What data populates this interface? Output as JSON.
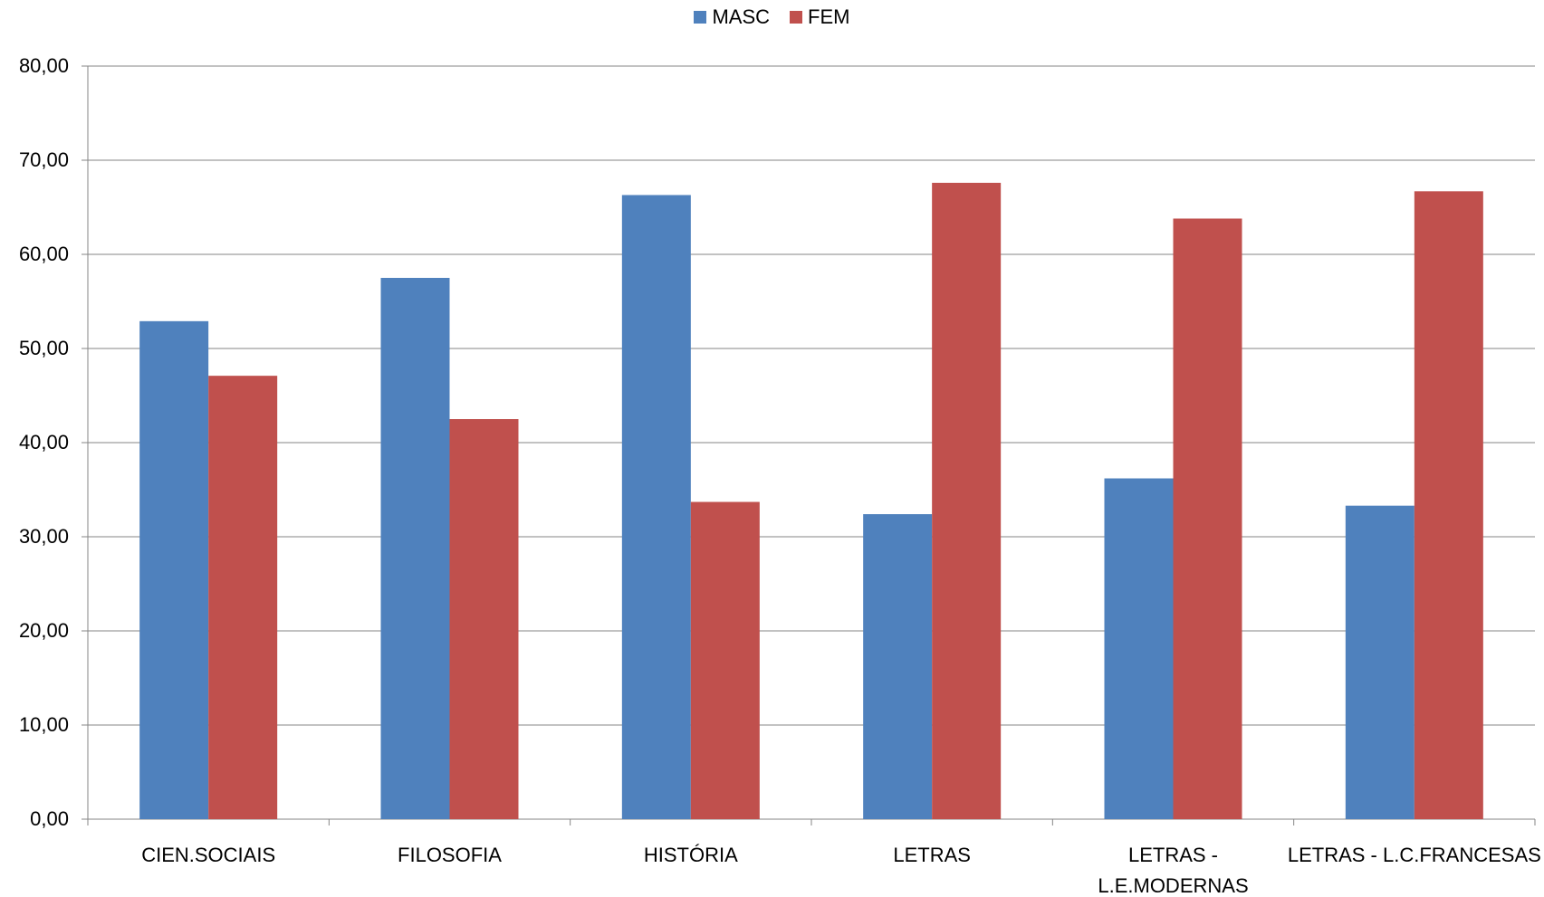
{
  "chart_data": {
    "type": "bar",
    "categories": [
      "CIEN.SOCIAIS",
      "FILOSOFIA",
      "HISTÓRIA",
      "LETRAS",
      "LETRAS - L.E.MODERNAS",
      "LETRAS - L.C.FRANCESAS"
    ],
    "category_label_lines": [
      [
        "CIEN.SOCIAIS"
      ],
      [
        "FILOSOFIA"
      ],
      [
        "HISTÓRIA"
      ],
      [
        "LETRAS"
      ],
      [
        "LETRAS -",
        "L.E.MODERNAS"
      ],
      [
        "LETRAS - L.C.FRANCESAS"
      ]
    ],
    "series": [
      {
        "name": "MASC",
        "color": "#4F81BD",
        "values": [
          52.9,
          57.5,
          66.3,
          32.4,
          36.2,
          33.3
        ]
      },
      {
        "name": "FEM",
        "color": "#C0504D",
        "values": [
          47.1,
          42.5,
          33.7,
          67.6,
          63.8,
          66.7
        ]
      }
    ],
    "y_ticks": [
      "0,00",
      "10,00",
      "20,00",
      "30,00",
      "40,00",
      "50,00",
      "60,00",
      "70,00",
      "80,00"
    ],
    "ylim": [
      0,
      80
    ],
    "grid": true,
    "legend_position": "top-center",
    "title": "",
    "xlabel": "",
    "ylabel": ""
  }
}
